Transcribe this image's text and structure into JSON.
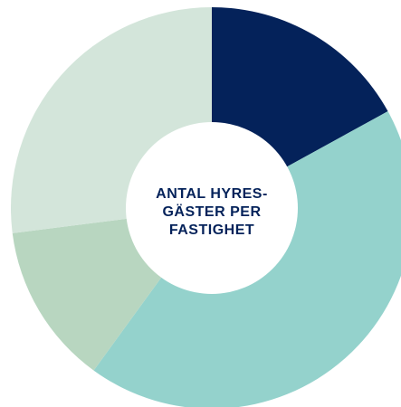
{
  "chart_data": {
    "type": "donut",
    "center_label": [
      "ANTAL HYRES-",
      "GÄSTER PER",
      "FASTIGHET"
    ],
    "slices": [
      {
        "value": 17,
        "color": "#04225a"
      },
      {
        "value": 43,
        "color": "#94d2cc"
      },
      {
        "value": 13,
        "color": "#b8d6c0"
      },
      {
        "value": 27,
        "color": "#d3e5da"
      }
    ],
    "center_label_color": "#04225a"
  }
}
